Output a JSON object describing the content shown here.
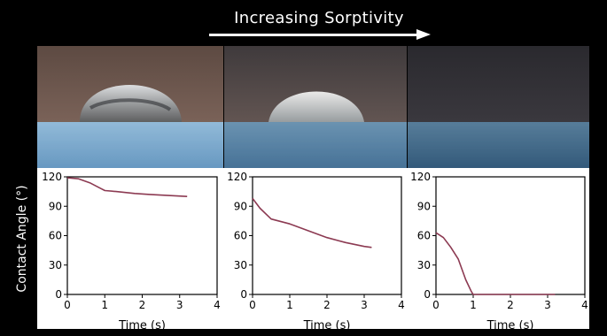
{
  "header": {
    "title": "Increasing Sorptivity"
  },
  "shared_ylabel": "Contact Angle (°)",
  "colors": {
    "line": "#8c3a52",
    "background": "#000000",
    "plot": "#ffffff"
  },
  "photos": [
    {
      "label": "high-contact-angle-droplet"
    },
    {
      "label": "mid-contact-angle-droplet"
    },
    {
      "label": "absorbed-droplet"
    }
  ],
  "chart_data": [
    {
      "type": "line",
      "xlabel": "Time (s)",
      "ylabel": "Contact Angle (°)",
      "xlim": [
        0,
        4
      ],
      "ylim": [
        0,
        120
      ],
      "xticks": [
        "0",
        "1",
        "2",
        "3",
        "4"
      ],
      "yticks": [
        "0",
        "30",
        "60",
        "90",
        "120"
      ],
      "series": [
        {
          "x": [
            0,
            0.3,
            0.6,
            0.9,
            1.0,
            1.3,
            1.8,
            2.2,
            2.7,
            3.2
          ],
          "y": [
            119,
            118,
            114,
            108,
            106,
            105,
            103,
            102,
            101,
            100
          ]
        }
      ]
    },
    {
      "type": "line",
      "xlabel": "Time (s)",
      "ylabel": "",
      "xlim": [
        0,
        4
      ],
      "ylim": [
        0,
        120
      ],
      "xticks": [
        "0",
        "1",
        "2",
        "3",
        "4"
      ],
      "yticks": [
        "0",
        "30",
        "60",
        "90",
        "120"
      ],
      "series": [
        {
          "x": [
            0,
            0.2,
            0.5,
            1.0,
            1.5,
            2.0,
            2.5,
            3.0,
            3.2
          ],
          "y": [
            98,
            88,
            77,
            72,
            65,
            58,
            53,
            49,
            48
          ]
        }
      ]
    },
    {
      "type": "line",
      "xlabel": "Time (s)",
      "ylabel": "",
      "xlim": [
        0,
        4
      ],
      "ylim": [
        0,
        120
      ],
      "xticks": [
        "0",
        "1",
        "2",
        "3",
        "4"
      ],
      "yticks": [
        "0",
        "30",
        "60",
        "90",
        "120"
      ],
      "series": [
        {
          "x": [
            0,
            0.2,
            0.4,
            0.6,
            0.8,
            0.95,
            1.0,
            1.5,
            2.0,
            2.5,
            3.0,
            3.2
          ],
          "y": [
            63,
            58,
            48,
            36,
            15,
            3,
            0,
            0,
            0,
            0,
            0,
            0
          ]
        }
      ]
    }
  ]
}
